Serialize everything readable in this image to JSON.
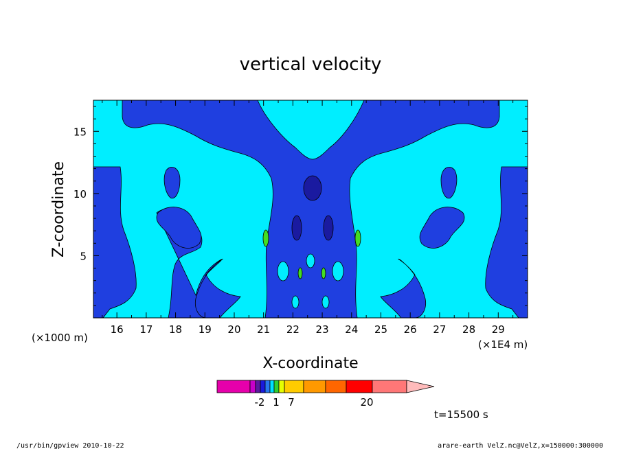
{
  "chart_data": {
    "type": "heatmap",
    "title": "vertical velocity",
    "xlabel": "X-coordinate",
    "ylabel": "Z-coordinate",
    "x_unit_left": "(×1000 m)",
    "x_unit_right": "(×1E4 m)",
    "xlim": [
      15.2,
      30
    ],
    "ylim": [
      0,
      17.5
    ],
    "x_ticks": [
      "16",
      "17",
      "18",
      "19",
      "20",
      "21",
      "22",
      "23",
      "24",
      "25",
      "26",
      "27",
      "28",
      "29"
    ],
    "y_ticks": [
      "5",
      "10",
      "15"
    ],
    "time_label": "t=15500 s",
    "colorbar": {
      "colors": [
        "#e600ab",
        "#c800c8",
        "#5a1aa0",
        "#1a1adc",
        "#2878f0",
        "#00e0ff",
        "#30d030",
        "#e6ff00",
        "#ffcc00",
        "#ff9900",
        "#ff6600",
        "#ff0000",
        "#ff7777"
      ],
      "extend_color": "#ffbbbb",
      "labels": [
        "-2",
        "1",
        "7",
        "20"
      ]
    },
    "field_colors": {
      "background": "#00eeff",
      "negative": "#1f3fe0",
      "strong_negative": "#1a1aa0",
      "positive": "#44dd22"
    }
  },
  "footer": {
    "left": "/usr/bin/gpview   2010-10-22",
    "right": "arare-earth_VelZ.nc@VelZ,x=150000:300000"
  }
}
